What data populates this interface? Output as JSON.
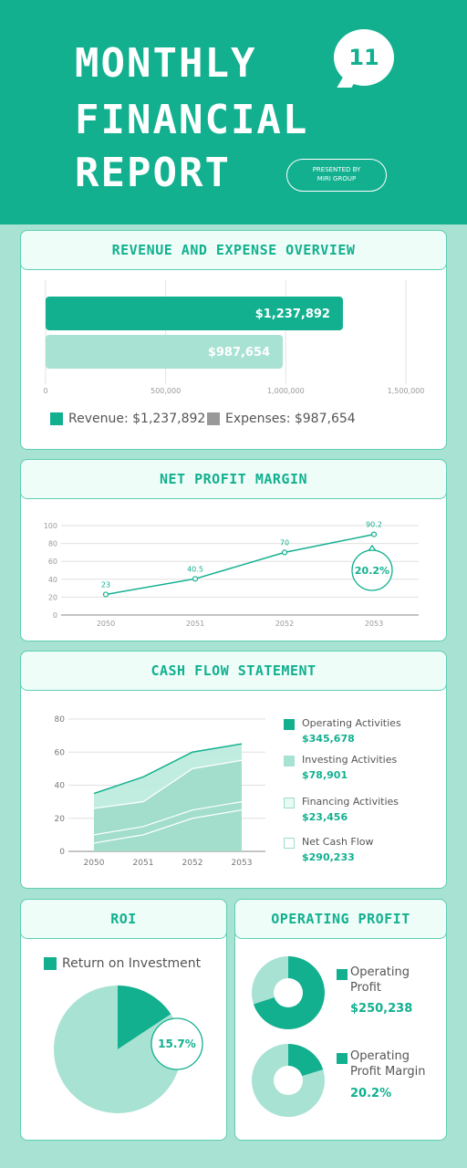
{
  "header": {
    "title_lines": [
      "MONTHLY",
      "FINANCIAL",
      "REPORT"
    ],
    "badge": "11",
    "presented_line1": "PRESENTED BY",
    "presented_line2": "MIRI GROUP"
  },
  "sections": {
    "revenue": "REVENUE AND EXPENSE OVERVIEW",
    "margin": "NET PROFIT MARGIN",
    "cashflow": "CASH FLOW STATEMENT",
    "roi": "ROI",
    "opprofit": "OPERATING PROFIT"
  },
  "colors": {
    "primary": "#12b08f",
    "light": "#a8e2d2",
    "gray": "#999999"
  },
  "revenue_legend": {
    "revenue": "Revenue: $1,237,892",
    "expenses": "Expenses: $987,654"
  },
  "roi_legend": "Return on Investment",
  "op_legend": {
    "profit_label": "Operating Profit",
    "profit_value": "$250,238",
    "margin_label": "Operating Profit Margin",
    "margin_value": "20.2%"
  },
  "cash_legend": [
    {
      "label": "Operating Activities",
      "value": "$345,678",
      "color": "#12b08f"
    },
    {
      "label": "Investing Activities",
      "value": "$78,901",
      "color": "#a8e2d2"
    },
    {
      "label": "Financing Activities",
      "value": "$23,456",
      "color": "#e6fbf5"
    },
    {
      "label": "Net Cash Flow",
      "value": "$290,233",
      "color": "#ffffff"
    }
  ],
  "chart_data": [
    {
      "type": "bar",
      "title": "REVENUE AND EXPENSE OVERVIEW",
      "orientation": "horizontal",
      "categories": [
        "Revenue",
        "Expenses"
      ],
      "values": [
        1237892,
        987654
      ],
      "labels": [
        "$1,237,892",
        "$987,654"
      ],
      "xlim": [
        0,
        1500000
      ],
      "ticks": [
        "0",
        "500,000",
        "1,000,000",
        "1,500,000"
      ],
      "grid": true
    },
    {
      "type": "line",
      "title": "NET PROFIT MARGIN",
      "x": [
        "2050",
        "2051",
        "2052",
        "2053"
      ],
      "values": [
        23,
        40.5,
        70,
        90.2
      ],
      "labels": [
        "23",
        "40.5",
        "70",
        "90.2"
      ],
      "ylim": [
        0,
        100
      ],
      "yticks": [
        "0",
        "20",
        "40",
        "60",
        "80",
        "100"
      ],
      "callout": "20.2%",
      "grid": true
    },
    {
      "type": "area",
      "title": "CASH FLOW STATEMENT",
      "x": [
        "2050",
        "2051",
        "2052",
        "2053"
      ],
      "ylim": [
        0,
        80
      ],
      "yticks": [
        "0",
        "20",
        "40",
        "60",
        "80"
      ],
      "series": [
        {
          "name": "Operating Activities",
          "values": [
            35,
            45,
            60,
            65
          ]
        },
        {
          "name": "Investing Activities",
          "values": [
            26,
            30,
            50,
            55
          ]
        },
        {
          "name": "Financing Activities",
          "values": [
            10,
            15,
            25,
            30
          ]
        },
        {
          "name": "Net Cash Flow",
          "values": [
            5,
            10,
            20,
            25
          ]
        }
      ],
      "grid": true
    },
    {
      "type": "pie",
      "title": "ROI",
      "categories": [
        "Return on Investment",
        "Other"
      ],
      "values": [
        15.7,
        84.3
      ],
      "callout": "15.7%"
    },
    {
      "type": "pie",
      "title": "Operating Profit",
      "donut": true,
      "categories": [
        "Operating Profit",
        "Other"
      ],
      "values": [
        70,
        30
      ]
    },
    {
      "type": "pie",
      "title": "Operating Profit Margin",
      "donut": true,
      "categories": [
        "Operating Profit Margin",
        "Other"
      ],
      "values": [
        20.2,
        79.8
      ]
    }
  ]
}
